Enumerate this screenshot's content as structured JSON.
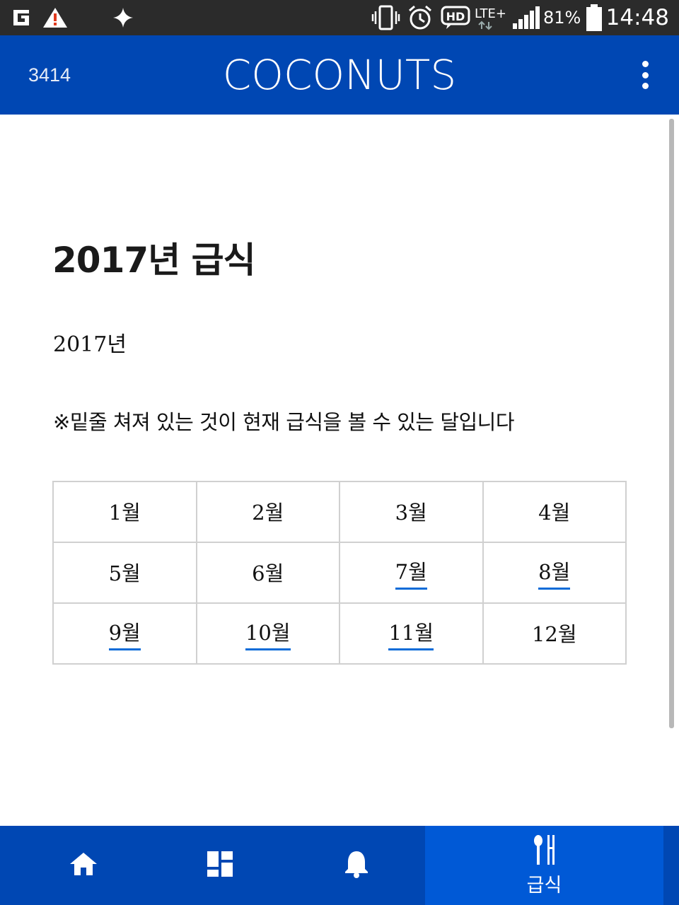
{
  "status_bar": {
    "battery_percent": "81%",
    "time": "14:48",
    "network": "LTE+",
    "icons": [
      "carrier-g-icon",
      "warning-icon",
      "sparkle-icon",
      "vibrate-icon",
      "alarm-icon",
      "hd-voice-icon",
      "lte-icon",
      "signal-icon",
      "battery-icon"
    ]
  },
  "header": {
    "user_id": "3414",
    "logo_text": "coconuts",
    "menu_icon": "more-vertical-icon"
  },
  "main": {
    "title": "2017년 급식",
    "year_label": "2017년",
    "notice": "※밑줄 쳐져 있는 것이 현재 급식을 볼 수 있는 달입니다",
    "months": [
      {
        "label": "1월",
        "available": false
      },
      {
        "label": "2월",
        "available": false
      },
      {
        "label": "3월",
        "available": false
      },
      {
        "label": "4월",
        "available": false
      },
      {
        "label": "5월",
        "available": false
      },
      {
        "label": "6월",
        "available": false
      },
      {
        "label": "7월",
        "available": true
      },
      {
        "label": "8월",
        "available": true
      },
      {
        "label": "9월",
        "available": true
      },
      {
        "label": "10월",
        "available": true
      },
      {
        "label": "11월",
        "available": true
      },
      {
        "label": "12월",
        "available": false
      }
    ]
  },
  "bottom_nav": {
    "items": [
      {
        "icon": "home-icon",
        "label": ""
      },
      {
        "icon": "dashboard-icon",
        "label": ""
      },
      {
        "icon": "bell-icon",
        "label": ""
      },
      {
        "icon": "meal-icon",
        "label": "급식",
        "active": true
      }
    ]
  },
  "colors": {
    "primary": "#0047b3",
    "active_tab": "#0059d6",
    "link_underline": "#0a6bd8",
    "status_bar": "#2b2b2b"
  }
}
